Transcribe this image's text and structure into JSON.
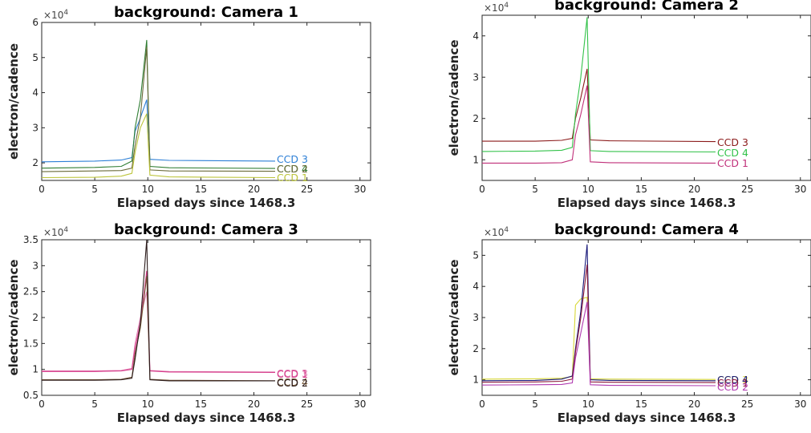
{
  "chart_data": [
    {
      "type": "line",
      "title": "background: Camera 1",
      "xlabel": "Elapsed days since 1468.3",
      "ylabel": "electron/cadence",
      "multiplier": "×10",
      "multiplier_exp": "4",
      "xlim": [
        0,
        31
      ],
      "ylim": [
        1.5,
        6
      ],
      "xticks": [
        "0",
        "5",
        "10",
        "15",
        "20",
        "25",
        "30"
      ],
      "yticks": [
        "2",
        "3",
        "4",
        "5",
        "6"
      ],
      "grid": false,
      "series": [
        {
          "name": "CCD 3",
          "color": "#2c7fd6",
          "points": [
            [
              0,
              2.03
            ],
            [
              5,
              2.05
            ],
            [
              7.5,
              2.08
            ],
            [
              8.5,
              2.15
            ],
            [
              8.8,
              2.9
            ],
            [
              9.2,
              3.2
            ],
            [
              9.9,
              3.8
            ],
            [
              10.2,
              2.1
            ],
            [
              12,
              2.07
            ],
            [
              22,
              2.05
            ]
          ]
        },
        {
          "name": "CCD 4",
          "color": "#2e7d32",
          "points": [
            [
              0,
              1.85
            ],
            [
              5,
              1.87
            ],
            [
              7.5,
              1.9
            ],
            [
              8.5,
              2.05
            ],
            [
              8.8,
              3.0
            ],
            [
              9.3,
              3.8
            ],
            [
              9.9,
              5.5
            ],
            [
              10.2,
              1.9
            ],
            [
              12,
              1.86
            ],
            [
              22,
              1.84
            ]
          ]
        },
        {
          "name": "CCD 2",
          "color": "#6b6b3a",
          "points": [
            [
              0,
              1.75
            ],
            [
              5,
              1.77
            ],
            [
              7.5,
              1.78
            ],
            [
              8.5,
              1.85
            ],
            [
              8.8,
              2.5
            ],
            [
              9.3,
              3.3
            ],
            [
              9.9,
              5.3
            ],
            [
              10.2,
              1.8
            ],
            [
              12,
              1.77
            ],
            [
              22,
              1.76
            ]
          ]
        },
        {
          "name": "CCD 1",
          "color": "#bcc43a",
          "points": [
            [
              0,
              1.58
            ],
            [
              5,
              1.59
            ],
            [
              7.5,
              1.62
            ],
            [
              8.5,
              1.7
            ],
            [
              8.8,
              2.3
            ],
            [
              9.3,
              3.0
            ],
            [
              9.9,
              3.4
            ],
            [
              10.2,
              1.65
            ],
            [
              12,
              1.6
            ],
            [
              22,
              1.58
            ]
          ]
        }
      ]
    },
    {
      "type": "line",
      "title": "background: Camera 2",
      "xlabel": "Elapsed days since 1468.3",
      "ylabel": "electron/cadence",
      "multiplier": "×10",
      "multiplier_exp": "4",
      "xlim": [
        0,
        31
      ],
      "ylim": [
        0.5,
        4.5
      ],
      "xticks": [
        "0",
        "5",
        "10",
        "15",
        "20",
        "25",
        "30"
      ],
      "yticks": [
        "1",
        "2",
        "3",
        "4"
      ],
      "grid": false,
      "series": [
        {
          "name": "CCD 3",
          "color": "#8b1a1a",
          "points": [
            [
              0,
              1.45
            ],
            [
              5,
              1.45
            ],
            [
              7.5,
              1.47
            ],
            [
              8.5,
              1.52
            ],
            [
              8.8,
              2.0
            ],
            [
              9.3,
              2.5
            ],
            [
              9.9,
              3.2
            ],
            [
              10.2,
              1.48
            ],
            [
              12,
              1.46
            ],
            [
              22,
              1.44
            ]
          ]
        },
        {
          "name": "CCD 4",
          "color": "#33c24a",
          "points": [
            [
              0,
              1.2
            ],
            [
              5,
              1.21
            ],
            [
              7.5,
              1.23
            ],
            [
              8.5,
              1.3
            ],
            [
              8.8,
              2.1
            ],
            [
              9.3,
              3.0
            ],
            [
              9.9,
              4.45
            ],
            [
              10.2,
              1.22
            ],
            [
              12,
              1.2
            ],
            [
              22,
              1.19
            ]
          ]
        },
        {
          "name": "CCD 1",
          "color": "#c0307a",
          "points": [
            [
              0,
              0.92
            ],
            [
              5,
              0.92
            ],
            [
              7.5,
              0.93
            ],
            [
              8.5,
              1.0
            ],
            [
              8.8,
              1.6
            ],
            [
              9.3,
              2.1
            ],
            [
              9.9,
              2.8
            ],
            [
              10.2,
              0.95
            ],
            [
              12,
              0.93
            ],
            [
              22,
              0.92
            ]
          ]
        }
      ]
    },
    {
      "type": "line",
      "title": "background: Camera 3",
      "xlabel": "Elapsed days since 1468.3",
      "ylabel": "electron/cadence",
      "multiplier": "×10",
      "multiplier_exp": "4",
      "xlim": [
        0,
        31
      ],
      "ylim": [
        0.5,
        3.5
      ],
      "xticks": [
        "0",
        "5",
        "10",
        "15",
        "20",
        "25",
        "30"
      ],
      "yticks": [
        "0.5",
        "1",
        "1.5",
        "2",
        "2.5",
        "3",
        "3.5"
      ],
      "grid": false,
      "series": [
        {
          "name": "CCD 3",
          "color": "#e07ab0",
          "points": [
            [
              0,
              0.97
            ],
            [
              5,
              0.97
            ],
            [
              7.5,
              0.98
            ],
            [
              8.5,
              1.02
            ],
            [
              8.8,
              1.5
            ],
            [
              9.3,
              2.0
            ],
            [
              9.9,
              2.5
            ],
            [
              10.2,
              0.98
            ],
            [
              12,
              0.96
            ],
            [
              22,
              0.95
            ]
          ]
        },
        {
          "name": "CCD 1",
          "color": "#d63c8a",
          "points": [
            [
              0,
              0.96
            ],
            [
              5,
              0.96
            ],
            [
              7.5,
              0.97
            ],
            [
              8.5,
              1.0
            ],
            [
              8.8,
              1.4
            ],
            [
              9.3,
              1.9
            ],
            [
              9.9,
              2.9
            ],
            [
              10.2,
              0.97
            ],
            [
              12,
              0.95
            ],
            [
              22,
              0.94
            ]
          ]
        },
        {
          "name": "CCD 4",
          "color": "#7a5c3c",
          "points": [
            [
              0,
              0.8
            ],
            [
              5,
              0.8
            ],
            [
              7.5,
              0.81
            ],
            [
              8.5,
              0.85
            ],
            [
              8.8,
              1.3
            ],
            [
              9.3,
              1.8
            ],
            [
              9.9,
              2.8
            ],
            [
              10.2,
              0.81
            ],
            [
              12,
              0.79
            ],
            [
              22,
              0.78
            ]
          ]
        },
        {
          "name": "CCD 2",
          "color": "#2a1a1a",
          "points": [
            [
              0,
              0.79
            ],
            [
              5,
              0.79
            ],
            [
              7.5,
              0.8
            ],
            [
              8.5,
              0.83
            ],
            [
              8.8,
              1.2
            ],
            [
              9.3,
              1.9
            ],
            [
              9.9,
              3.5
            ],
            [
              10.2,
              0.8
            ],
            [
              12,
              0.78
            ],
            [
              22,
              0.78
            ]
          ]
        }
      ]
    },
    {
      "type": "line",
      "title": "background: Camera 4",
      "xlabel": "Elapsed days since 1468.3",
      "ylabel": "electron/cadence",
      "multiplier": "×10",
      "multiplier_exp": "4",
      "xlim": [
        0,
        31
      ],
      "ylim": [
        0.5,
        5.5
      ],
      "xticks": [
        "0",
        "5",
        "10",
        "15",
        "20",
        "25",
        "30"
      ],
      "yticks": [
        "1",
        "2",
        "3",
        "4",
        "5"
      ],
      "grid": false,
      "series": [
        {
          "name": "CCD 3",
          "color": "#d8d83a",
          "points": [
            [
              0,
              1.02
            ],
            [
              5,
              1.03
            ],
            [
              7.5,
              1.05
            ],
            [
              8.5,
              1.1
            ],
            [
              8.8,
              3.4
            ],
            [
              9.3,
              3.6
            ],
            [
              9.9,
              3.65
            ],
            [
              10.2,
              1.03
            ],
            [
              12,
              1.02
            ],
            [
              22,
              1.01
            ]
          ]
        },
        {
          "name": "CCD 4",
          "color": "#1a1a7a",
          "points": [
            [
              0,
              0.97
            ],
            [
              5,
              0.98
            ],
            [
              7.5,
              1.02
            ],
            [
              8.5,
              1.12
            ],
            [
              8.8,
              2.0
            ],
            [
              9.3,
              3.2
            ],
            [
              9.9,
              5.35
            ],
            [
              10.2,
              1.0
            ],
            [
              12,
              0.98
            ],
            [
              22,
              0.97
            ]
          ]
        },
        {
          "name": "CCD 1",
          "color": "#8b1a3a",
          "points": [
            [
              0,
              0.92
            ],
            [
              5,
              0.93
            ],
            [
              7.5,
              0.95
            ],
            [
              8.5,
              1.02
            ],
            [
              8.8,
              1.9
            ],
            [
              9.3,
              3.0
            ],
            [
              9.9,
              4.7
            ],
            [
              10.2,
              0.93
            ],
            [
              12,
              0.92
            ],
            [
              22,
              0.91
            ]
          ]
        },
        {
          "name": "CCD 2",
          "color": "#b03ab0",
          "points": [
            [
              0,
              0.83
            ],
            [
              5,
              0.84
            ],
            [
              7.5,
              0.85
            ],
            [
              8.5,
              0.9
            ],
            [
              8.8,
              1.7
            ],
            [
              9.3,
              2.5
            ],
            [
              9.9,
              3.5
            ],
            [
              10.2,
              0.84
            ],
            [
              12,
              0.82
            ],
            [
              22,
              0.81
            ]
          ]
        }
      ]
    }
  ]
}
